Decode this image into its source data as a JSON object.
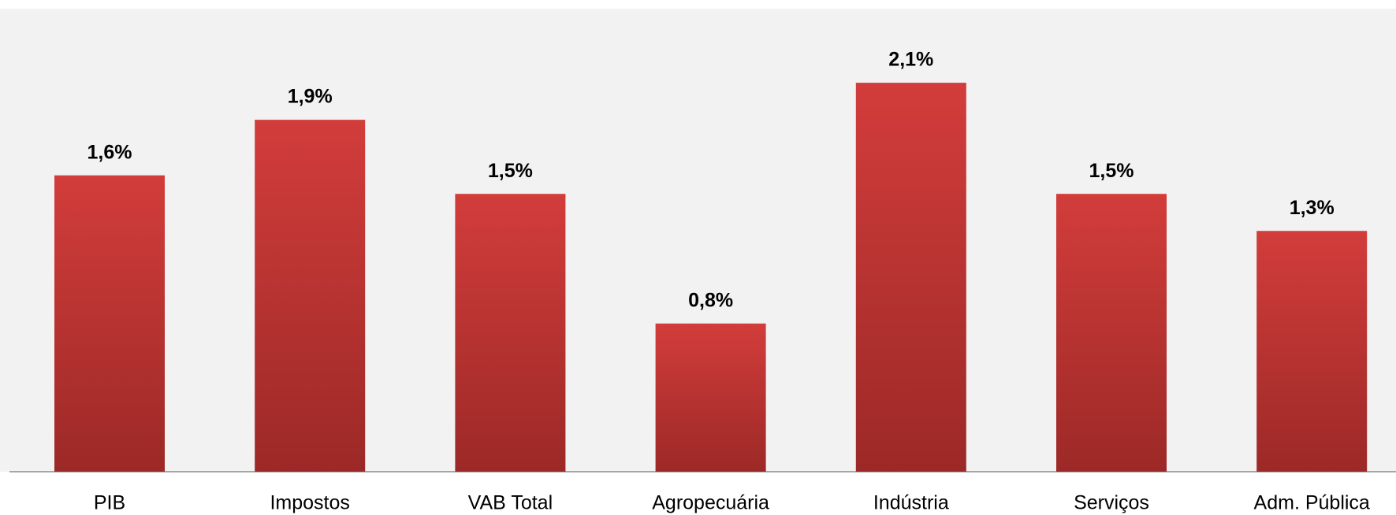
{
  "chart_data": {
    "type": "bar",
    "categories": [
      "PIB",
      "Impostos",
      "VAB Total",
      "Agropecuária",
      "Indústria",
      "Serviços",
      "Adm. Pública"
    ],
    "values": [
      1.6,
      1.9,
      1.5,
      0.8,
      2.1,
      1.5,
      1.3
    ],
    "value_labels": [
      "1,6%",
      "1,9%",
      "1,5%",
      "0,8%",
      "2,1%",
      "1,5%",
      "1,3%"
    ],
    "color": "#c53634",
    "ylim": [
      0,
      2.5
    ]
  }
}
